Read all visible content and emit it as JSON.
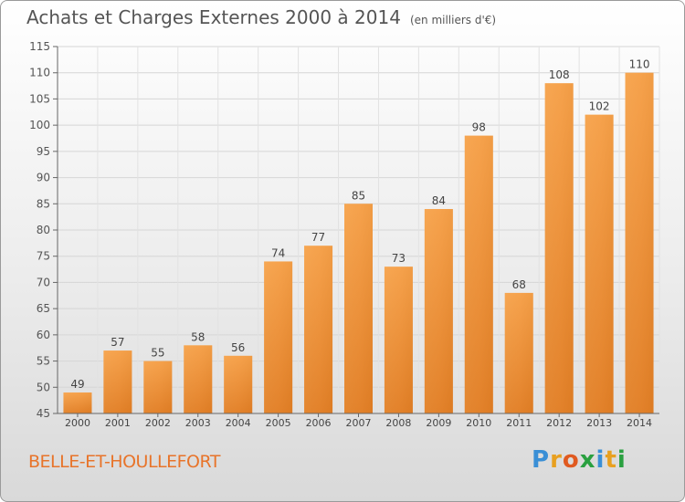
{
  "header": {
    "title": "Achats et Charges Externes 2000 à 2014",
    "subtitle": "(en milliers d'€)"
  },
  "footer": {
    "commune": "BELLE-ET-HOULLEFORT",
    "logo_letters": [
      "P",
      "r",
      "o",
      "x",
      "i",
      "t",
      "i"
    ],
    "logo_colors": [
      "#3a8fd6",
      "#e8a020",
      "#e05a20",
      "#2aa040",
      "#3a8fd6",
      "#e8a020",
      "#2aa040"
    ]
  },
  "chart_data": {
    "type": "bar",
    "categories": [
      "2000",
      "2001",
      "2002",
      "2003",
      "2004",
      "2005",
      "2006",
      "2007",
      "2008",
      "2009",
      "2010",
      "2011",
      "2012",
      "2013",
      "2014"
    ],
    "values": [
      49,
      57,
      55,
      58,
      56,
      74,
      77,
      85,
      73,
      84,
      98,
      68,
      108,
      102,
      110
    ],
    "ylim": [
      45,
      115
    ],
    "yticks": [
      45,
      50,
      55,
      60,
      65,
      70,
      75,
      80,
      85,
      90,
      95,
      100,
      105,
      110,
      115
    ],
    "grid": true,
    "bar_color": "#f0a050",
    "bar_color_dark": "#d87a20"
  }
}
